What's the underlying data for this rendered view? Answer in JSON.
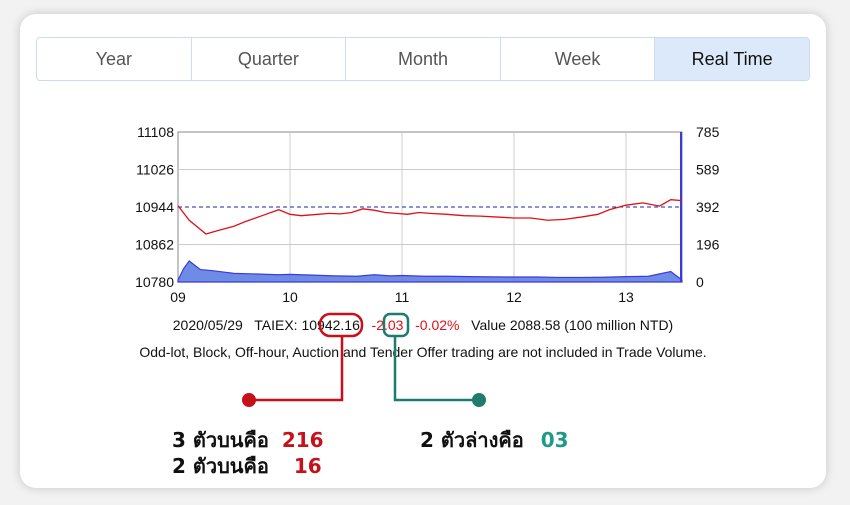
{
  "tabs": [
    {
      "label": "Year",
      "active": false
    },
    {
      "label": "Quarter",
      "active": false
    },
    {
      "label": "Month",
      "active": false
    },
    {
      "label": "Week",
      "active": false
    },
    {
      "label": "Real Time",
      "active": true
    }
  ],
  "chart_data": {
    "type": "line",
    "x_ticks": [
      "09",
      "10",
      "11",
      "12",
      "13"
    ],
    "y_left_ticks": [
      "11108",
      "11026",
      "10944",
      "10862",
      "10780"
    ],
    "y_right_ticks": [
      "785",
      "589",
      "392",
      "196",
      "0"
    ],
    "ylim_left": [
      10780,
      11108
    ],
    "ylim_right": [
      0,
      785
    ],
    "reference_line": 10944,
    "series": [
      {
        "color": "#e0101a",
        "axis": "left",
        "x": [
          9.0,
          9.1,
          9.25,
          9.35,
          9.5,
          9.6,
          9.75,
          9.9,
          10.0,
          10.1,
          10.25,
          10.35,
          10.45,
          10.55,
          10.65,
          10.75,
          10.85,
          10.95,
          11.05,
          11.15,
          11.25,
          11.4,
          11.55,
          11.7,
          11.85,
          12.0,
          12.15,
          12.3,
          12.45,
          12.6,
          12.75,
          12.85,
          13.0,
          13.15,
          13.3,
          13.4,
          13.5
        ],
        "values": [
          10947,
          10915,
          10885,
          10892,
          10902,
          10912,
          10925,
          10938,
          10928,
          10925,
          10928,
          10930,
          10929,
          10932,
          10940,
          10937,
          10932,
          10930,
          10928,
          10932,
          10930,
          10928,
          10925,
          10924,
          10922,
          10920,
          10920,
          10915,
          10917,
          10922,
          10928,
          10938,
          10948,
          10953,
          10946,
          10960,
          10958
        ]
      },
      {
        "color": "#3b3bdb",
        "axis": "right",
        "type": "area",
        "x": [
          9.0,
          9.05,
          9.1,
          9.2,
          9.3,
          9.5,
          9.7,
          9.9,
          10.0,
          10.2,
          10.4,
          10.6,
          10.75,
          10.9,
          11.0,
          11.2,
          11.4,
          11.6,
          11.8,
          12.0,
          12.2,
          12.4,
          12.6,
          12.8,
          13.0,
          13.2,
          13.4,
          13.5
        ],
        "values": [
          10,
          70,
          110,
          65,
          60,
          45,
          42,
          38,
          40,
          36,
          32,
          30,
          38,
          32,
          34,
          30,
          30,
          28,
          27,
          26,
          26,
          24,
          24,
          25,
          28,
          30,
          55,
          10
        ]
      }
    ]
  },
  "info_line": {
    "date": "2020/05/29",
    "index_label": "TAIEX: 10942.16",
    "change": "-2.03",
    "change_pct": "-0.02%",
    "value_text": "Value 2088.58 (100 million NTD)"
  },
  "note": "Odd-lot, Block, Off-hour, Auction and Tender Offer trading are not included in Trade Volume.",
  "annotations": {
    "left_line1_label": "3 ตัวบนคือ",
    "left_line1_value": "216",
    "left_line2_label": "2 ตัวบนคือ",
    "left_line2_value": "16",
    "right_label": "2 ตัวล่างคือ",
    "right_value": "03"
  },
  "colors": {
    "red_marker": "#c8101a",
    "green_marker": "#1f7a70",
    "price_line": "#e0101a",
    "volume_area": "#3b3bdb"
  }
}
